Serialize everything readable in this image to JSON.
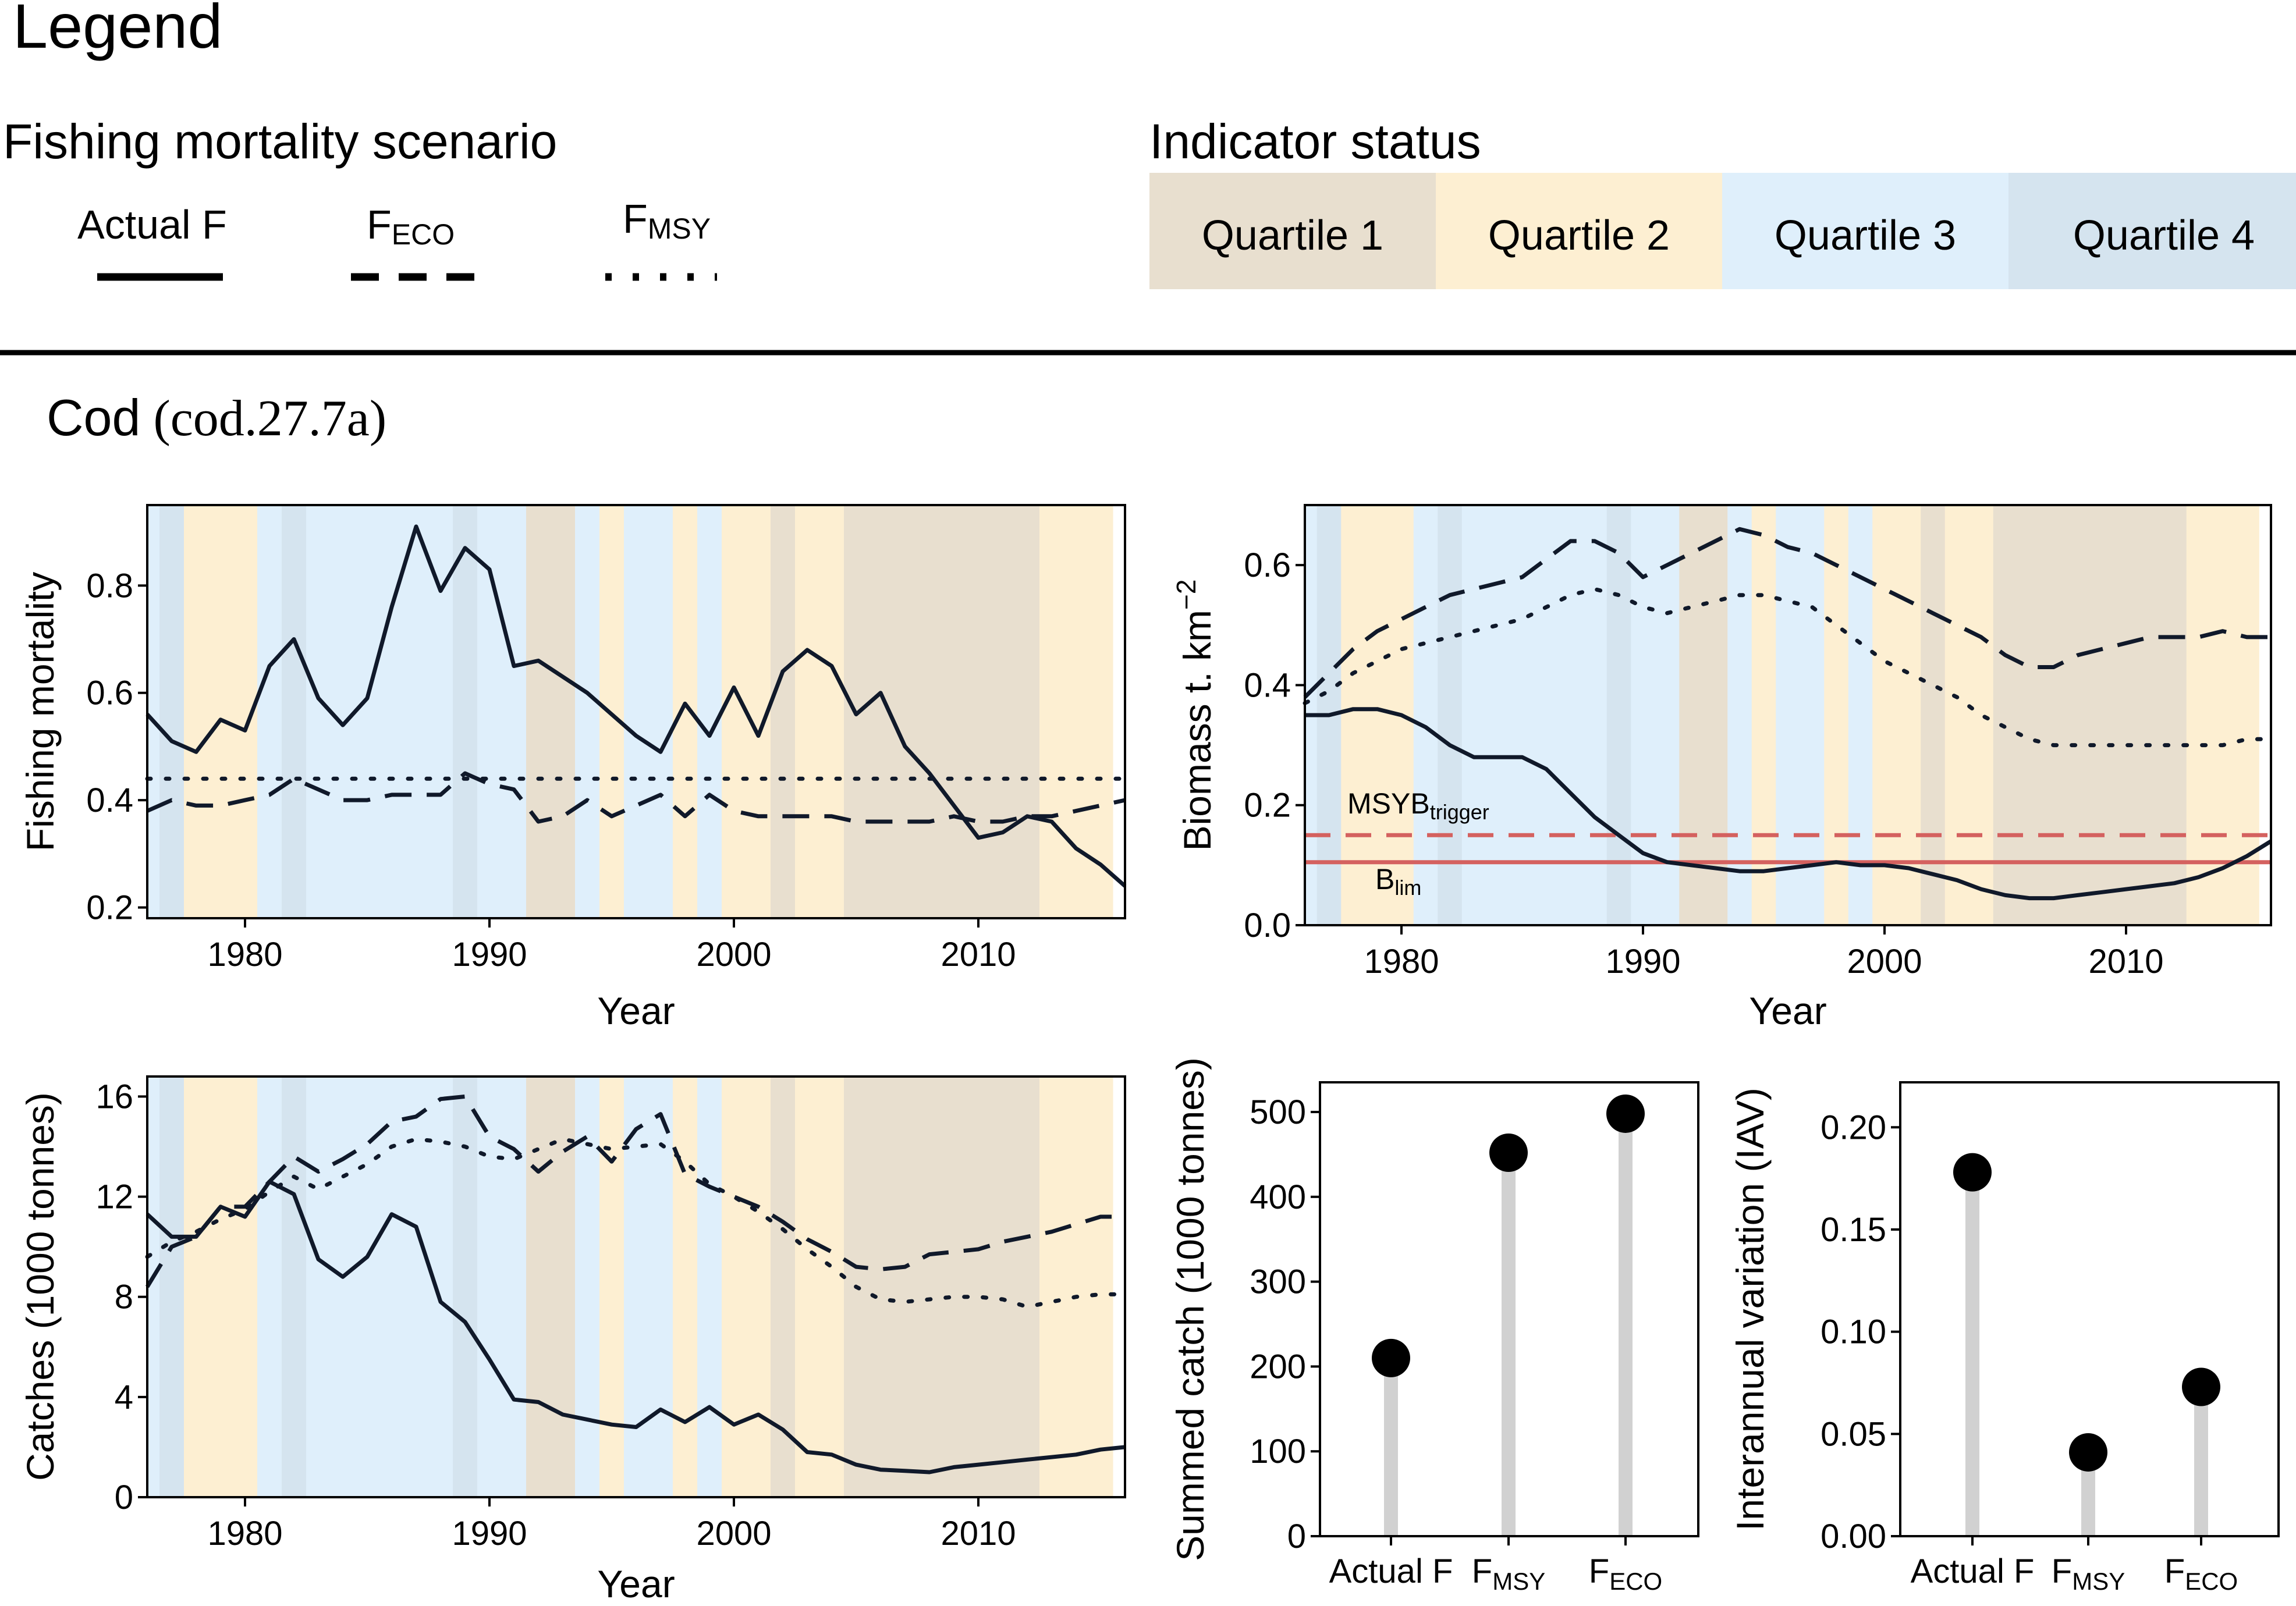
{
  "legend": {
    "title": "Legend",
    "scenario_title": "Fishing mortality scenario",
    "scenarios": [
      {
        "label": "Actual F",
        "base": "Actual F",
        "sub": ""
      },
      {
        "label": "FECO",
        "base": "F",
        "sub": "ECO"
      },
      {
        "label": "FMSY",
        "base": "F",
        "sub": "MSY"
      }
    ],
    "status_title": "Indicator status",
    "quartiles": [
      {
        "label": "Quartile 1",
        "color": "#e8dfcf"
      },
      {
        "label": "Quartile 2",
        "color": "#fdefd2"
      },
      {
        "label": "Quartile 3",
        "color": "#dfeffb"
      },
      {
        "label": "Quartile 4",
        "color": "#d5e4ef"
      }
    ]
  },
  "section": {
    "title_main": "Cod",
    "title_code": "(cod.27.7a)"
  },
  "colors": {
    "line": "#10192a",
    "ref_line": "#d4615f",
    "stick": "#d1d1d1",
    "dot": "#000000"
  },
  "quartile_by_year": {
    "start_year": 1976,
    "quartiles": [
      3,
      4,
      2,
      2,
      2,
      3,
      4,
      3,
      3,
      3,
      3,
      3,
      3,
      4,
      3,
      3,
      1,
      1,
      3,
      2,
      3,
      3,
      2,
      3,
      2,
      2,
      1,
      2,
      2,
      1,
      1,
      1,
      1,
      1,
      1,
      1,
      1,
      2,
      2,
      2
    ]
  },
  "chart_data": [
    {
      "id": "fishing-mortality",
      "type": "line",
      "xlabel": "Year",
      "ylabel": "Fishing mortality",
      "xlim": [
        1976,
        2016
      ],
      "ylim": [
        0.18,
        0.95
      ],
      "xticks": [
        1980,
        1990,
        2000,
        2010
      ],
      "yticks": [
        0.2,
        0.4,
        0.6,
        0.8
      ],
      "ytick_labels": [
        "0.2",
        "0.4",
        "0.6",
        "0.8"
      ],
      "series": [
        {
          "name": "Actual F",
          "dash": "solid",
          "x": [
            1976,
            1977,
            1978,
            1979,
            1980,
            1981,
            1982,
            1983,
            1984,
            1985,
            1986,
            1987,
            1988,
            1989,
            1990,
            1991,
            1992,
            1993,
            1994,
            1995,
            1996,
            1997,
            1998,
            1999,
            2000,
            2001,
            2002,
            2003,
            2004,
            2005,
            2006,
            2007,
            2008,
            2009,
            2010,
            2011,
            2012,
            2013,
            2014,
            2015,
            2016
          ],
          "y": [
            0.56,
            0.51,
            0.49,
            0.55,
            0.53,
            0.65,
            0.7,
            0.59,
            0.54,
            0.59,
            0.76,
            0.91,
            0.79,
            0.87,
            0.83,
            0.65,
            0.66,
            0.63,
            0.6,
            0.56,
            0.52,
            0.49,
            0.58,
            0.52,
            0.61,
            0.52,
            0.64,
            0.68,
            0.65,
            0.56,
            0.6,
            0.5,
            0.45,
            0.39,
            0.33,
            0.34,
            0.37,
            0.36,
            0.31,
            0.28,
            0.24
          ]
        },
        {
          "name": "FECO",
          "dash": "dashed",
          "x": [
            1976,
            1977,
            1978,
            1979,
            1980,
            1981,
            1982,
            1983,
            1984,
            1985,
            1986,
            1987,
            1988,
            1989,
            1990,
            1991,
            1992,
            1993,
            1994,
            1995,
            1996,
            1997,
            1998,
            1999,
            2000,
            2001,
            2002,
            2003,
            2004,
            2005,
            2006,
            2007,
            2008,
            2009,
            2010,
            2011,
            2012,
            2013,
            2014,
            2015,
            2016
          ],
          "y": [
            0.38,
            0.4,
            0.39,
            0.39,
            0.4,
            0.41,
            0.44,
            0.42,
            0.4,
            0.4,
            0.41,
            0.41,
            0.41,
            0.45,
            0.43,
            0.42,
            0.36,
            0.37,
            0.4,
            0.37,
            0.39,
            0.41,
            0.37,
            0.41,
            0.38,
            0.37,
            0.37,
            0.37,
            0.37,
            0.36,
            0.36,
            0.36,
            0.36,
            0.37,
            0.36,
            0.36,
            0.37,
            0.37,
            0.38,
            0.39,
            0.4
          ]
        },
        {
          "name": "FMSY",
          "dash": "dotted",
          "x": [
            1976,
            2016
          ],
          "y": [
            0.44,
            0.44
          ]
        }
      ]
    },
    {
      "id": "biomass",
      "type": "line",
      "xlabel": "Year",
      "ylabel": "Biomass t. km",
      "ylabel_sup": "−2",
      "xlim": [
        1976,
        2016
      ],
      "ylim": [
        0,
        0.7
      ],
      "xticks": [
        1980,
        1990,
        2000,
        2010
      ],
      "yticks": [
        0.0,
        0.2,
        0.4,
        0.6
      ],
      "ytick_labels": [
        "0.0",
        "0.2",
        "0.4",
        "0.6"
      ],
      "ref_lines": [
        {
          "name": "MSYBtrigger",
          "label_base": "MSYB",
          "label_sub": "trigger",
          "y": 0.15,
          "dash": "dashed"
        },
        {
          "name": "Blim",
          "label_base": "B",
          "label_sub": "lim",
          "y": 0.105,
          "dash": "solid"
        }
      ],
      "series": [
        {
          "name": "Actual F",
          "dash": "solid",
          "x": [
            1976,
            1977,
            1978,
            1979,
            1980,
            1981,
            1982,
            1983,
            1984,
            1985,
            1986,
            1987,
            1988,
            1989,
            1990,
            1991,
            1992,
            1993,
            1994,
            1995,
            1996,
            1997,
            1998,
            1999,
            2000,
            2001,
            2002,
            2003,
            2004,
            2005,
            2006,
            2007,
            2008,
            2009,
            2010,
            2011,
            2012,
            2013,
            2014,
            2015,
            2016
          ],
          "y": [
            0.35,
            0.35,
            0.36,
            0.36,
            0.35,
            0.33,
            0.3,
            0.28,
            0.28,
            0.28,
            0.26,
            0.22,
            0.18,
            0.15,
            0.12,
            0.105,
            0.1,
            0.095,
            0.09,
            0.09,
            0.095,
            0.1,
            0.105,
            0.1,
            0.1,
            0.095,
            0.085,
            0.075,
            0.06,
            0.05,
            0.045,
            0.045,
            0.05,
            0.055,
            0.06,
            0.065,
            0.07,
            0.08,
            0.095,
            0.115,
            0.14
          ]
        },
        {
          "name": "FECO",
          "dash": "dashed",
          "x": [
            1976,
            1977,
            1978,
            1979,
            1980,
            1981,
            1982,
            1983,
            1984,
            1985,
            1986,
            1987,
            1988,
            1989,
            1990,
            1991,
            1992,
            1993,
            1994,
            1995,
            1996,
            1997,
            1998,
            1999,
            2000,
            2001,
            2002,
            2003,
            2004,
            2005,
            2006,
            2007,
            2008,
            2009,
            2010,
            2011,
            2012,
            2013,
            2014,
            2015,
            2016
          ],
          "y": [
            0.38,
            0.42,
            0.46,
            0.49,
            0.51,
            0.53,
            0.55,
            0.56,
            0.57,
            0.58,
            0.61,
            0.64,
            0.64,
            0.62,
            0.58,
            0.6,
            0.62,
            0.64,
            0.66,
            0.65,
            0.63,
            0.62,
            0.6,
            0.58,
            0.56,
            0.54,
            0.52,
            0.5,
            0.48,
            0.45,
            0.43,
            0.43,
            0.45,
            0.46,
            0.47,
            0.48,
            0.48,
            0.48,
            0.49,
            0.48,
            0.48
          ]
        },
        {
          "name": "FMSY",
          "dash": "dotted",
          "x": [
            1976,
            1977,
            1978,
            1979,
            1980,
            1981,
            1982,
            1983,
            1984,
            1985,
            1986,
            1987,
            1988,
            1989,
            1990,
            1991,
            1992,
            1993,
            1994,
            1995,
            1996,
            1997,
            1998,
            1999,
            2000,
            2001,
            2002,
            2003,
            2004,
            2005,
            2006,
            2007,
            2008,
            2009,
            2010,
            2011,
            2012,
            2013,
            2014,
            2015,
            2016
          ],
          "y": [
            0.37,
            0.39,
            0.42,
            0.44,
            0.46,
            0.47,
            0.48,
            0.49,
            0.5,
            0.51,
            0.53,
            0.55,
            0.56,
            0.55,
            0.53,
            0.52,
            0.53,
            0.54,
            0.55,
            0.55,
            0.54,
            0.53,
            0.5,
            0.47,
            0.44,
            0.42,
            0.4,
            0.38,
            0.35,
            0.33,
            0.31,
            0.3,
            0.3,
            0.3,
            0.3,
            0.3,
            0.3,
            0.3,
            0.3,
            0.31,
            0.31
          ]
        }
      ]
    },
    {
      "id": "catches",
      "type": "line",
      "xlabel": "Year",
      "ylabel": "Catches (1000 tonnes)",
      "xlim": [
        1976,
        2016
      ],
      "ylim": [
        0,
        16.8
      ],
      "xticks": [
        1980,
        1990,
        2000,
        2010
      ],
      "yticks": [
        0,
        4,
        8,
        12,
        16
      ],
      "ytick_labels": [
        "0",
        "4",
        "8",
        "12",
        "16"
      ],
      "series": [
        {
          "name": "Actual F",
          "dash": "solid",
          "x": [
            1976,
            1977,
            1978,
            1979,
            1980,
            1981,
            1982,
            1983,
            1984,
            1985,
            1986,
            1987,
            1988,
            1989,
            1990,
            1991,
            1992,
            1993,
            1994,
            1995,
            1996,
            1997,
            1998,
            1999,
            2000,
            2001,
            2002,
            2003,
            2004,
            2005,
            2006,
            2007,
            2008,
            2009,
            2010,
            2011,
            2012,
            2013,
            2014,
            2015,
            2016
          ],
          "y": [
            11.3,
            10.4,
            10.4,
            11.6,
            11.2,
            12.6,
            12.1,
            9.5,
            8.8,
            9.6,
            11.3,
            10.8,
            7.8,
            7.0,
            5.5,
            3.9,
            3.8,
            3.3,
            3.1,
            2.9,
            2.8,
            3.5,
            3.0,
            3.6,
            2.9,
            3.3,
            2.7,
            1.8,
            1.7,
            1.3,
            1.1,
            1.05,
            1.0,
            1.2,
            1.3,
            1.4,
            1.5,
            1.6,
            1.7,
            1.9,
            2.0
          ]
        },
        {
          "name": "FECO",
          "dash": "dashed",
          "x": [
            1976,
            1977,
            1978,
            1979,
            1980,
            1981,
            1982,
            1983,
            1984,
            1985,
            1986,
            1987,
            1988,
            1989,
            1990,
            1991,
            1992,
            1993,
            1994,
            1995,
            1996,
            1997,
            1998,
            1999,
            2000,
            2001,
            2002,
            2003,
            2004,
            2005,
            2006,
            2007,
            2008,
            2009,
            2010,
            2011,
            2012,
            2013,
            2014,
            2015,
            2016
          ],
          "y": [
            8.4,
            10.0,
            10.4,
            11.6,
            11.6,
            12.6,
            13.6,
            13.0,
            13.5,
            14.1,
            15.0,
            15.2,
            15.9,
            16.0,
            14.4,
            13.9,
            13.0,
            13.8,
            14.4,
            13.4,
            14.7,
            15.3,
            12.9,
            12.4,
            12.0,
            11.6,
            11.0,
            10.3,
            9.8,
            9.2,
            9.1,
            9.2,
            9.7,
            9.8,
            9.9,
            10.2,
            10.4,
            10.6,
            10.9,
            11.2,
            11.2
          ]
        },
        {
          "name": "FMSY",
          "dash": "dotted",
          "x": [
            1976,
            1977,
            1978,
            1979,
            1980,
            1981,
            1982,
            1983,
            1984,
            1985,
            1986,
            1987,
            1988,
            1989,
            1990,
            1991,
            1992,
            1993,
            1994,
            1995,
            1996,
            1997,
            1998,
            1999,
            2000,
            2001,
            2002,
            2003,
            2004,
            2005,
            2006,
            2007,
            2008,
            2009,
            2010,
            2011,
            2012,
            2013,
            2014,
            2015,
            2016
          ],
          "y": [
            9.6,
            10.2,
            10.6,
            11.1,
            11.5,
            12.2,
            12.8,
            12.3,
            12.8,
            13.3,
            14.0,
            14.3,
            14.2,
            14.0,
            13.6,
            13.5,
            13.9,
            14.3,
            14.1,
            13.9,
            14.0,
            14.1,
            13.4,
            12.5,
            12.0,
            11.4,
            10.7,
            9.9,
            9.2,
            8.4,
            7.9,
            7.8,
            7.9,
            8.0,
            8.0,
            7.9,
            7.6,
            7.8,
            8.0,
            8.1,
            8.1
          ]
        }
      ]
    },
    {
      "id": "summed-catch",
      "type": "lollipop",
      "ylabel": "Summed catch (1000 tonnes)",
      "ylim": [
        0,
        535
      ],
      "yticks": [
        0,
        100,
        200,
        300,
        400,
        500
      ],
      "ytick_labels": [
        "0",
        "100",
        "200",
        "300",
        "400",
        "500"
      ],
      "categories": [
        {
          "label": "Actual F",
          "base": "Actual F",
          "sub": ""
        },
        {
          "label": "FMSY",
          "base": "F",
          "sub": "MSY"
        },
        {
          "label": "FECO",
          "base": "F",
          "sub": "ECO"
        }
      ],
      "values": [
        210,
        452,
        498
      ]
    },
    {
      "id": "iav",
      "type": "lollipop",
      "ylabel": "Interannual variation (IAV)",
      "ylim": [
        0,
        0.222
      ],
      "yticks": [
        0.0,
        0.05,
        0.1,
        0.15,
        0.2
      ],
      "ytick_labels": [
        "0.00",
        "0.05",
        "0.10",
        "0.15",
        "0.20"
      ],
      "categories": [
        {
          "label": "Actual F",
          "base": "Actual F",
          "sub": ""
        },
        {
          "label": "FMSY",
          "base": "F",
          "sub": "MSY"
        },
        {
          "label": "FECO",
          "base": "F",
          "sub": "ECO"
        }
      ],
      "values": [
        0.178,
        0.041,
        0.073
      ]
    }
  ]
}
